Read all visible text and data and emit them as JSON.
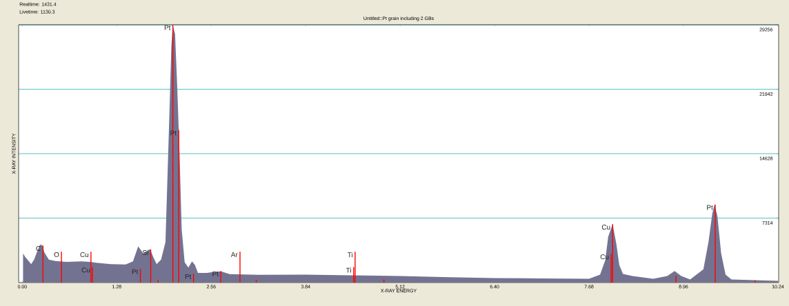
{
  "chart_data": {
    "type": "area",
    "title": "Untitled::Pt grain including 2 GBs",
    "xlabel": "X-RAY ENERGY",
    "ylabel": "X-RAY INTENSITY",
    "xlim": [
      -0.05,
      10.25
    ],
    "ylim": [
      0,
      29256
    ],
    "xticks": [
      {
        "value": 0,
        "label": "0.00"
      },
      {
        "value": 1.28,
        "label": "1.28"
      },
      {
        "value": 2.56,
        "label": "2.56"
      },
      {
        "value": 3.84,
        "label": "3.84"
      },
      {
        "value": 5.12,
        "label": "5.12"
      },
      {
        "value": 6.4,
        "label": "6.40"
      },
      {
        "value": 7.68,
        "label": "7.68"
      },
      {
        "value": 8.96,
        "label": "8.96"
      },
      {
        "value": 10.24,
        "label": "10.24"
      }
    ],
    "yticks": [
      7314,
      14628,
      21942,
      29256
    ],
    "grid": "y",
    "series": [
      {
        "color": "#737391",
        "x": [
          0.01,
          0.04,
          0.08,
          0.12,
          0.16,
          0.2,
          0.24,
          0.27,
          0.3,
          0.36,
          0.45,
          0.6,
          0.8,
          0.92,
          1.0,
          1.2,
          1.4,
          1.5,
          1.57,
          1.64,
          1.73,
          1.78,
          1.82,
          1.88,
          1.94,
          1.99,
          2.02,
          2.04,
          2.07,
          2.1,
          2.13,
          2.16,
          2.2,
          2.25,
          2.3,
          2.34,
          2.38,
          2.5,
          2.63,
          2.7,
          2.81,
          3.2,
          3.84,
          4.5,
          5.12,
          5.8,
          6.4,
          7.0,
          7.68,
          7.83,
          7.9,
          7.94,
          8.0,
          8.05,
          8.09,
          8.14,
          8.27,
          8.55,
          8.74,
          8.84,
          8.93,
          9.05,
          9.23,
          9.3,
          9.35,
          9.38,
          9.42,
          9.47,
          9.53,
          9.61,
          10.0,
          10.24
        ],
        "values": [
          3300,
          2900,
          2500,
          2100,
          2600,
          3500,
          4300,
          4250,
          3400,
          2600,
          2450,
          2350,
          2400,
          2350,
          2250,
          2100,
          2050,
          2400,
          4100,
          3300,
          3800,
          2800,
          2100,
          2600,
          4600,
          18200,
          26850,
          29200,
          28200,
          22100,
          14800,
          6000,
          2300,
          1700,
          2400,
          2000,
          1100,
          1100,
          1250,
          1250,
          950,
          880,
          900,
          820,
          750,
          600,
          500,
          470,
          430,
          900,
          2550,
          5200,
          6620,
          4400,
          2000,
          980,
          750,
          430,
          750,
          1300,
          750,
          350,
          1500,
          4650,
          7800,
          8850,
          7550,
          3350,
          900,
          350,
          250,
          200
        ]
      },
      {
        "type": "bar",
        "color": "#ff0000",
        "x": [
          0.28,
          0.53,
          0.93,
          0.95,
          1.6,
          1.74,
          1.84,
          2.04,
          2.12,
          2.32,
          2.69,
          2.95,
          3.17,
          4.49,
          4.51,
          4.9,
          7.98,
          8.0,
          8.86,
          9.39,
          9.93
        ],
        "values": [
          4200,
          3500,
          3500,
          1750,
          1550,
          3750,
          300,
          29256,
          17300,
          1000,
          1300,
          3500,
          300,
          1750,
          3500,
          350,
          3250,
          6620,
          800,
          8850,
          250
        ]
      }
    ],
    "annotations": [
      "Realtime: 1431.4",
      "Livetime: 1130.3",
      {
        "text": "C",
        "x": 0.28,
        "y": 4200
      },
      {
        "text": "O",
        "x": 0.53,
        "y": 3500
      },
      {
        "text": "Cu",
        "x": 0.93,
        "y": 3500
      },
      {
        "text": "Cu",
        "x": 0.95,
        "y": 1750
      },
      {
        "text": "Pt",
        "x": 1.6,
        "y": 1550
      },
      {
        "text": "Si",
        "x": 1.74,
        "y": 3750
      },
      {
        "text": "Pt",
        "x": 2.04,
        "y": 29256
      },
      {
        "text": "Pt",
        "x": 2.12,
        "y": 17300
      },
      {
        "text": "Pt",
        "x": 2.32,
        "y": 1000
      },
      {
        "text": "Pt",
        "x": 2.69,
        "y": 1300
      },
      {
        "text": "Ar",
        "x": 2.95,
        "y": 3500
      },
      {
        "text": "Ti",
        "x": 4.51,
        "y": 3500
      },
      {
        "text": "Ti",
        "x": 4.49,
        "y": 1750
      },
      {
        "text": "Cu",
        "x": 7.98,
        "y": 3250
      },
      {
        "text": "Cu",
        "x": 8.0,
        "y": 6620
      },
      {
        "text": "Pt",
        "x": 9.39,
        "y": 8850
      }
    ]
  }
}
